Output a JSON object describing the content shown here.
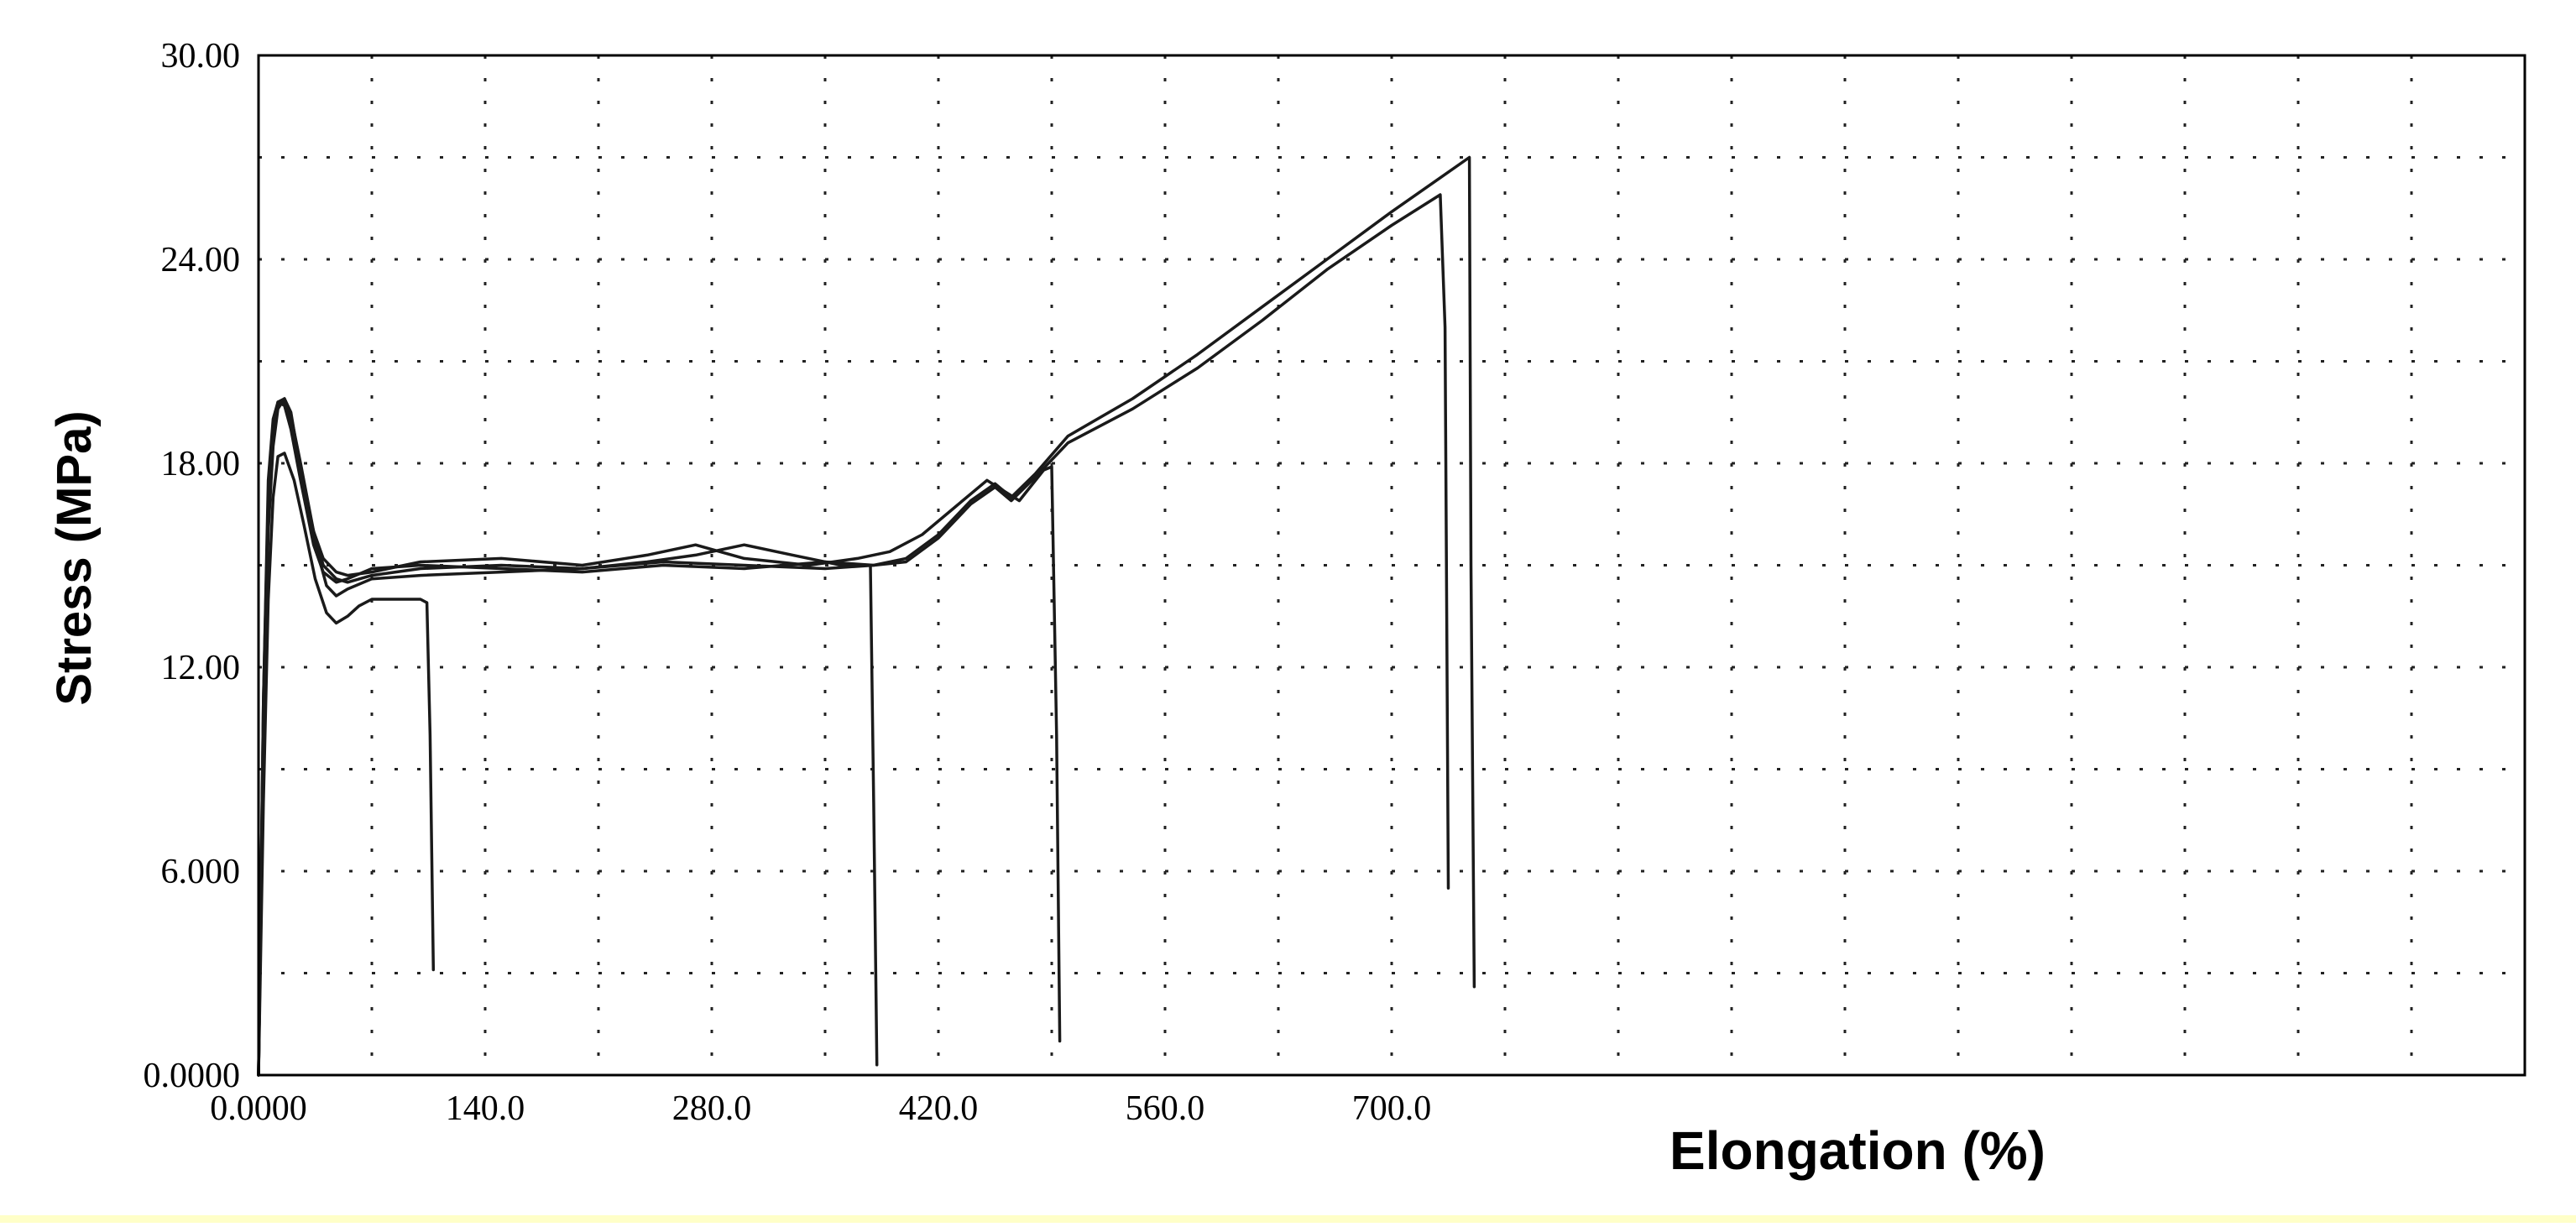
{
  "colors": {
    "background": "#ffffff",
    "curve": "#1a1a1a",
    "grid": "#222222",
    "bottom_band": "#ffffc8"
  },
  "chart_data": {
    "type": "line",
    "title": "",
    "xlabel": "Elongation (%)",
    "ylabel": "Stress (MPa)",
    "xlim": [
      0,
      1400
    ],
    "ylim": [
      0,
      30
    ],
    "x_ticks": [
      0,
      140,
      280,
      420,
      560,
      700
    ],
    "x_tick_labels": [
      "0.0000",
      "140.0",
      "280.0",
      "420.0",
      "560.0",
      "700.0"
    ],
    "x_grid_lines": [
      0,
      70,
      140,
      210,
      280,
      350,
      420,
      490,
      560,
      630,
      700,
      770,
      840,
      910,
      980,
      1050,
      1120,
      1190,
      1260,
      1330,
      1400
    ],
    "y_ticks": [
      0,
      6,
      12,
      18,
      24,
      30
    ],
    "y_tick_labels": [
      "0.0000",
      "6.000",
      "12.00",
      "18.00",
      "24.00",
      "30.00"
    ],
    "y_grid_lines": [
      0,
      3,
      6,
      9,
      12,
      15,
      18,
      21,
      24,
      27,
      30
    ],
    "grid": true,
    "legend": "none",
    "series": [
      {
        "x": [
          0,
          3,
          6,
          9,
          12,
          16,
          22,
          28,
          35,
          42,
          48,
          55,
          62,
          70,
          85,
          100,
          104,
          106,
          108
        ],
        "y": [
          0,
          8,
          14,
          17,
          18.2,
          18.3,
          17.5,
          16.2,
          14.6,
          13.6,
          13.3,
          13.5,
          13.8,
          14.0,
          14.0,
          14.0,
          13.9,
          10,
          3.1
        ]
      },
      {
        "x": [
          0,
          3,
          6,
          9,
          12,
          16,
          20,
          26,
          34,
          42,
          48,
          55,
          70,
          100,
          150,
          200,
          240,
          270,
          300,
          330,
          360,
          378,
          380,
          382
        ],
        "y": [
          0,
          10,
          16,
          18.5,
          19.6,
          19.9,
          19.5,
          17.8,
          15.8,
          14.4,
          14.1,
          14.3,
          14.6,
          14.7,
          14.8,
          14.9,
          15.1,
          15.3,
          15.6,
          15.3,
          15.0,
          15.0,
          8,
          0.3
        ]
      },
      {
        "x": [
          0,
          3,
          6,
          9,
          12,
          16,
          20,
          26,
          34,
          40,
          48,
          55,
          70,
          100,
          150,
          200,
          240,
          270,
          300,
          340,
          370,
          390,
          410,
          430,
          450,
          470,
          485,
          490,
          493,
          495
        ],
        "y": [
          0,
          11,
          17,
          19,
          19.8,
          19.9,
          19.4,
          18,
          16,
          15.2,
          14.8,
          14.7,
          14.8,
          15.1,
          15.2,
          15.0,
          15.3,
          15.6,
          15.2,
          15.0,
          15.2,
          15.4,
          15.9,
          16.7,
          17.5,
          16.9,
          17.8,
          17.9,
          10,
          1.0
        ]
      },
      {
        "x": [
          0,
          3,
          6,
          9,
          12,
          16,
          20,
          26,
          34,
          40,
          48,
          55,
          70,
          100,
          150,
          200,
          250,
          300,
          350,
          380,
          400,
          420,
          440,
          455,
          465,
          480,
          500,
          540,
          580,
          620,
          660,
          700,
          730,
          733,
          735
        ],
        "y": [
          0,
          11,
          17.5,
          19.3,
          19.8,
          19.7,
          19.0,
          17.5,
          15.6,
          14.8,
          14.5,
          14.6,
          14.9,
          15.0,
          14.9,
          14.8,
          15.0,
          14.9,
          15.1,
          15.0,
          15.1,
          15.8,
          16.8,
          17.3,
          16.9,
          17.6,
          18.6,
          19.6,
          20.8,
          22.2,
          23.7,
          25.0,
          25.9,
          22,
          5.5
        ]
      },
      {
        "x": [
          0,
          3,
          6,
          9,
          12,
          16,
          20,
          26,
          34,
          40,
          48,
          55,
          70,
          100,
          150,
          200,
          250,
          300,
          350,
          380,
          400,
          420,
          440,
          455,
          465,
          480,
          500,
          540,
          580,
          620,
          660,
          700,
          730,
          748,
          749,
          751
        ],
        "y": [
          0,
          10.5,
          17,
          19,
          19.7,
          19.8,
          19.2,
          17.6,
          16.0,
          15.0,
          14.6,
          14.5,
          14.7,
          14.9,
          15.0,
          14.9,
          15.1,
          15.0,
          14.9,
          15.0,
          15.2,
          15.9,
          16.9,
          17.4,
          17.0,
          17.7,
          18.8,
          19.9,
          21.2,
          22.6,
          24.0,
          25.4,
          26.4,
          27.0,
          15,
          2.6
        ]
      }
    ]
  }
}
